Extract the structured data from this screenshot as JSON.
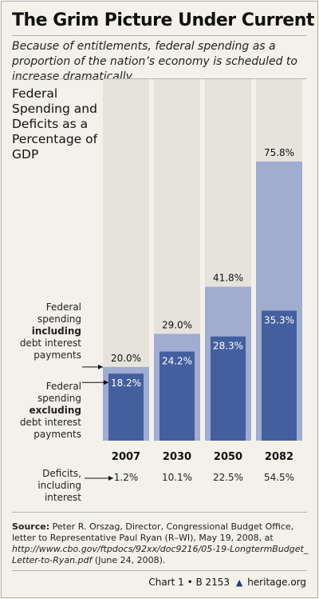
{
  "header": {
    "title": "The Grim Picture Under Current Law",
    "subtitle": "Because of entitlements, federal spending as a proportion of the nation’s economy is scheduled to increase dramatically."
  },
  "legend": {
    "including": {
      "pre": "Federal spending ",
      "bold": "including",
      "post": " debt interest payments"
    },
    "excluding": {
      "pre": "Federal spending ",
      "bold": "excluding",
      "post": " debt interest payments"
    },
    "deficits_label": "Deficits, including interest"
  },
  "colors": {
    "background": "#f3f1ea",
    "column_background": "#e6e3db",
    "including_interest": "#a0acd0",
    "excluding_interest": "#445f9e"
  },
  "chart_data": {
    "type": "bar",
    "title": "Federal Spending and Deficits as a Percentage of GDP",
    "categories": [
      "2007",
      "2030",
      "2050",
      "2082"
    ],
    "ylim": [
      0,
      75.8
    ],
    "series": [
      {
        "name": "Federal spending including debt interest payments",
        "values": [
          20.0,
          29.0,
          41.8,
          75.8
        ],
        "labels": [
          "20.0%",
          "29.0%",
          "41.8%",
          "75.8%"
        ]
      },
      {
        "name": "Federal spending excluding debt interest payments",
        "values": [
          18.2,
          24.2,
          28.3,
          35.3
        ],
        "labels": [
          "18.2%",
          "24.2%",
          "28.3%",
          "35.3%"
        ]
      }
    ],
    "deficits": {
      "name": "Deficits, including interest",
      "values": [
        1.2,
        10.1,
        22.5,
        54.5
      ],
      "labels": [
        "1.2%",
        "10.1%",
        "22.5%",
        "54.5%"
      ]
    }
  },
  "source": {
    "label": "Source:",
    "text": " Peter R. Orszag, Director, Congressional Budget Office, letter to Representative Paul Ryan (R–WI), May 19, 2008, at ",
    "url": "http://www.cbo.gov/ftpdocs/92xx/doc9216/05-19-LongtermBudget_ Letter-to-Ryan.pdf",
    "date": " (June 24, 2008)."
  },
  "footer": {
    "chart_ref": "Chart 1 • B 2153",
    "brand": "heritage.org"
  }
}
